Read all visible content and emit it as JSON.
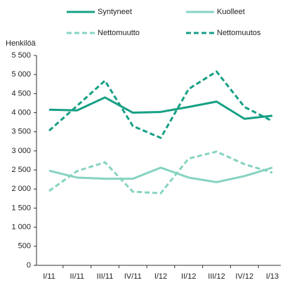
{
  "chart_data": {
    "type": "line",
    "y_axis_label": "Henkilöä",
    "categories": [
      "I/11",
      "II/11",
      "III/11",
      "IV/11",
      "I/12",
      "II/12",
      "III/12",
      "IV/12",
      "I/13"
    ],
    "series": [
      {
        "name": "Syntyneet",
        "color": "#16a085",
        "dash": false,
        "values": [
          4080,
          4060,
          4400,
          4000,
          4020,
          4150,
          4290,
          3840,
          3920
        ]
      },
      {
        "name": "Kuolleet",
        "color": "#86d3c1",
        "dash": false,
        "values": [
          2480,
          2300,
          2270,
          2270,
          2560,
          2300,
          2180,
          2340,
          2560
        ]
      },
      {
        "name": "Nettomuutto",
        "color": "#86d3c1",
        "dash": true,
        "values": [
          1950,
          2470,
          2700,
          1930,
          1890,
          2800,
          2980,
          2650,
          2430
        ]
      },
      {
        "name": "Nettomuutos",
        "color": "#16a085",
        "dash": true,
        "values": [
          3530,
          4180,
          4840,
          3650,
          3340,
          4620,
          5080,
          4150,
          3780
        ]
      }
    ],
    "ylim": [
      0,
      5500
    ],
    "yticks": [
      0,
      500,
      {
        "value": 1000,
        "label": "1 000"
      },
      {
        "value": 1500,
        "label": "1 500"
      },
      {
        "value": 2000,
        "label": "2 000"
      },
      {
        "value": 2500,
        "label": "2 500"
      },
      {
        "value": 3000,
        "label": "3 000"
      },
      {
        "value": 3500,
        "label": "3 500"
      },
      {
        "value": 4000,
        "label": "4 000"
      },
      {
        "value": 4500,
        "label": "4 500"
      },
      {
        "value": 5000,
        "label": "5 000"
      },
      {
        "value": 5500,
        "label": "5 500"
      }
    ],
    "grid": false
  }
}
